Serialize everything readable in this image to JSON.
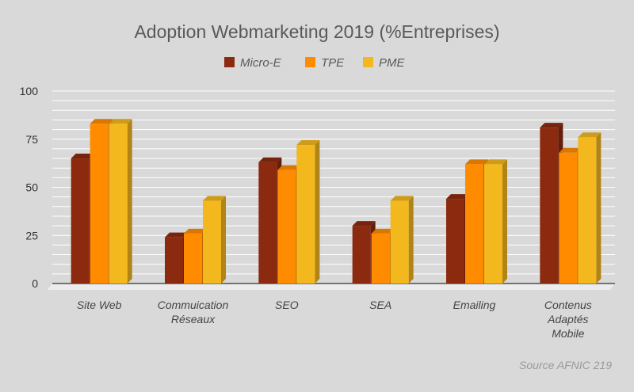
{
  "chart_data": {
    "type": "bar",
    "title": "Adoption Webmarketing 2019 (%Entreprises)",
    "categories": [
      [
        "Site Web"
      ],
      [
        "Commuication",
        "Réseaux"
      ],
      [
        "SEO"
      ],
      [
        "SEA"
      ],
      [
        "Emailing"
      ],
      [
        "Contenus",
        "Adaptés",
        "Mobile"
      ]
    ],
    "series": [
      {
        "name": "Micro-E",
        "color": "#8b2a0f",
        "values": [
          65,
          24,
          63,
          30,
          44,
          81
        ]
      },
      {
        "name": "TPE",
        "color": "#ff8c00",
        "values": [
          83,
          26,
          59,
          26,
          62,
          68
        ]
      },
      {
        "name": "PME",
        "color": "#f4b81f",
        "values": [
          83,
          43,
          72,
          43,
          62,
          76
        ]
      }
    ],
    "yticks": [
      0,
      25,
      50,
      75,
      100
    ],
    "ylim": [
      0,
      100
    ],
    "legend_position": "top",
    "grid": true,
    "source": "Source AFNIC 219"
  }
}
